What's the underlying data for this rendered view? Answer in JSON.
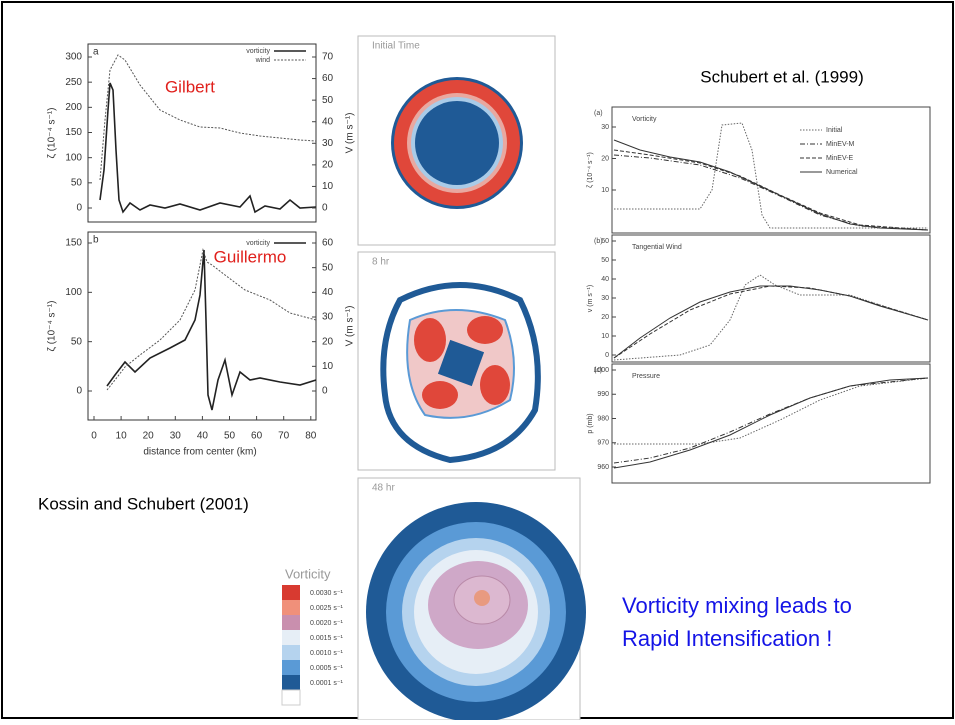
{
  "slide": {
    "caption_left": "Kossin and Schubert (2001)",
    "caption_right": "Schubert et al. (1999)",
    "message": [
      "Vorticity mixing leads to",
      "Rapid Intensification !"
    ]
  },
  "panel_a": {
    "label": "a",
    "annotation": "Gilbert",
    "legend": [
      "vorticity",
      "wind"
    ],
    "ylabel_left": "ζ (10⁻⁴ s⁻¹)",
    "ylabel_right": "V (m s⁻¹)",
    "yticks_left": [
      "300",
      "250",
      "200",
      "150",
      "100",
      "50",
      "0"
    ],
    "yticks_right": [
      "70",
      "60",
      "50",
      "40",
      "30",
      "20",
      "10",
      "0"
    ]
  },
  "panel_b": {
    "label": "b",
    "annotation": "Guillermo",
    "legend": [
      "vorticity"
    ],
    "ylabel_left": "ζ (10⁻⁴ s⁻¹)",
    "ylabel_right": "V (m s⁻¹)",
    "yticks_left": [
      "150",
      "100",
      "50",
      "0"
    ],
    "yticks_right": [
      "60",
      "50",
      "40",
      "30",
      "20",
      "10",
      "0"
    ]
  },
  "xaxis": {
    "ticks": [
      "0",
      "10",
      "20",
      "30",
      "40",
      "50",
      "60",
      "70",
      "80"
    ],
    "label": "distance from center (km)"
  },
  "snapshots": [
    "Initial Time",
    "8 hr",
    "48 hr"
  ],
  "colorbar": {
    "title": "Vorticity",
    "labels": [
      "0.0030 s⁻¹",
      "0.0025 s⁻¹",
      "0.0020 s⁻¹",
      "0.0015 s⁻¹",
      "0.0010 s⁻¹",
      "0.0005 s⁻¹",
      "0.0001 s⁻¹"
    ]
  },
  "schubert": {
    "legend": [
      "Initial",
      "MinEV-M",
      "MinEV-E",
      "Numerical"
    ],
    "panels": [
      {
        "label": "(a)",
        "title": "Vorticity",
        "ylabel": "ζ (10⁻⁴ s⁻¹)",
        "yticks": [
          "30",
          "20",
          "10"
        ]
      },
      {
        "label": "(b)",
        "title": "Tangential Wind",
        "ylabel": "v (m s⁻¹)",
        "yticks": [
          "60",
          "50",
          "40",
          "30",
          "20",
          "10",
          "0"
        ]
      },
      {
        "label": "(c)",
        "title": "Pressure",
        "ylabel": "p (mb)",
        "yticks": [
          "1000",
          "990",
          "980",
          "970",
          "960"
        ]
      }
    ]
  }
}
